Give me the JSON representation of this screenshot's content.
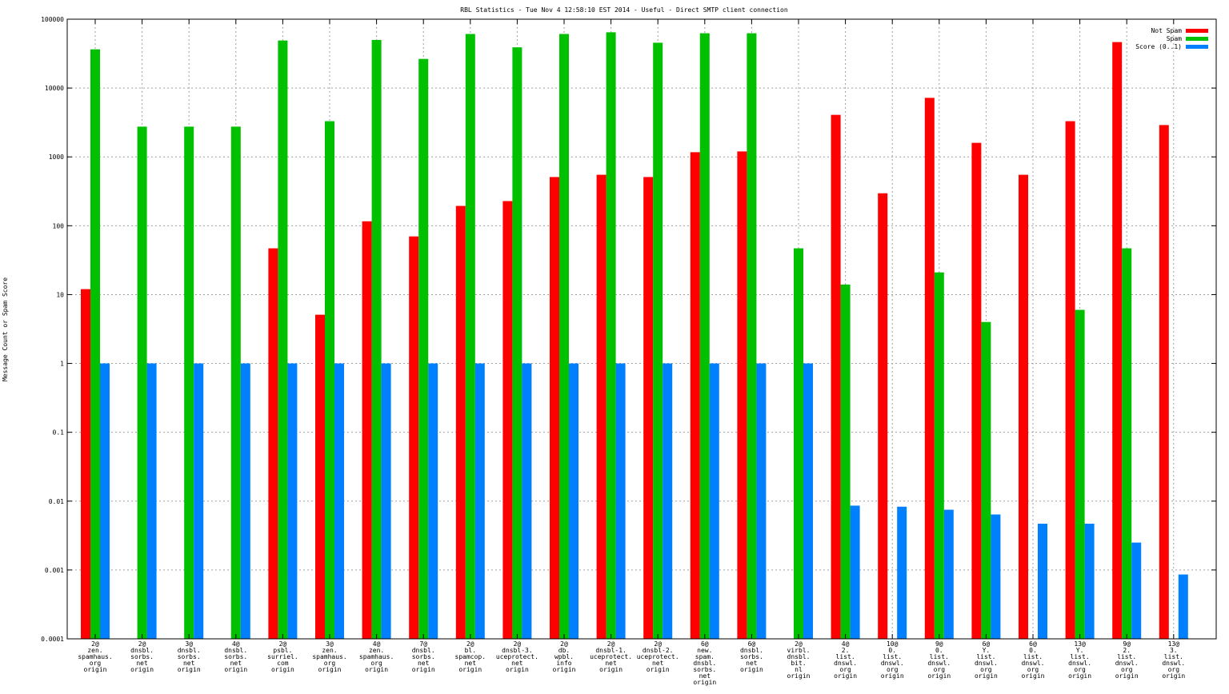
{
  "chart_data": {
    "type": "bar",
    "title": "RBL Statistics - Tue Nov  4 12:58:10 EST 2014 - Useful - Direct SMTP client connection",
    "xlabel": "",
    "ylabel": "Message Count or Spam Score",
    "yscale": "log",
    "ylim": [
      0.0001,
      100000
    ],
    "yticks": [
      "100000",
      "10000",
      "1000",
      "100",
      "10",
      "1",
      "0.1",
      "0.01",
      "0.001",
      "0.0001"
    ],
    "grid": true,
    "legend_position": "top-right",
    "categories": [
      [
        "2@",
        "zen.",
        "spamhaus.",
        "org",
        "origin"
      ],
      [
        "2@",
        "dnsbl.",
        "sorbs.",
        "net",
        "origin"
      ],
      [
        "3@",
        "dnsbl.",
        "sorbs.",
        "net",
        "origin"
      ],
      [
        "4@",
        "dnsbl.",
        "sorbs.",
        "net",
        "origin"
      ],
      [
        "2@",
        "psbl.",
        "surriel.",
        "com",
        "origin"
      ],
      [
        "3@",
        "zen.",
        "spamhaus.",
        "org",
        "origin"
      ],
      [
        "4@",
        "zen.",
        "spamhaus.",
        "org",
        "origin"
      ],
      [
        "7@",
        "dnsbl.",
        "sorbs.",
        "net",
        "origin"
      ],
      [
        "2@",
        "bl.",
        "spamcop.",
        "net",
        "origin"
      ],
      [
        "2@",
        "dnsbl-3.",
        "uceprotect.",
        "net",
        "origin"
      ],
      [
        "2@",
        "db.",
        "wpbl.",
        "info",
        "origin"
      ],
      [
        "2@",
        "dnsbl-1.",
        "uceprotect.",
        "net",
        "origin"
      ],
      [
        "2@",
        "dnsbl-2.",
        "uceprotect.",
        "net",
        "origin"
      ],
      [
        "6@",
        "new.",
        "spam.",
        "dnsbl.",
        "sorbs.",
        "net",
        "origin"
      ],
      [
        "6@",
        "dnsbl.",
        "sorbs.",
        "net",
        "origin"
      ],
      [
        "2@",
        "virbl.",
        "dnsbl.",
        "bit.",
        "nl",
        "origin"
      ],
      [
        "4@",
        "2.",
        "list.",
        "dnswl.",
        "org",
        "origin"
      ],
      [
        "10@",
        "0.",
        "list.",
        "dnswl.",
        "org",
        "origin"
      ],
      [
        "9@",
        "0.",
        "list.",
        "dnswl.",
        "org",
        "origin"
      ],
      [
        "6@",
        "Y.",
        "list.",
        "dnswl.",
        "org",
        "origin"
      ],
      [
        "6@",
        "0.",
        "list.",
        "dnswl.",
        "org",
        "origin"
      ],
      [
        "13@",
        "Y.",
        "list.",
        "dnswl.",
        "org",
        "origin"
      ],
      [
        "9@",
        "2.",
        "list.",
        "dnswl.",
        "org",
        "origin"
      ],
      [
        "13@",
        "3.",
        "list.",
        "dnswl.",
        "org",
        "origin"
      ]
    ],
    "series": [
      {
        "name": "Not Spam",
        "color": "#ff0000",
        "values": [
          12,
          null,
          null,
          null,
          47,
          5.1,
          116,
          70,
          194,
          228,
          510,
          550,
          510,
          1170,
          1200,
          null,
          4080,
          296,
          7200,
          1600,
          550,
          3300,
          46500,
          2900
        ]
      },
      {
        "name": "Spam",
        "color": "#00c000",
        "values": [
          36500,
          2750,
          2750,
          2750,
          49000,
          3300,
          50000,
          26500,
          61000,
          39000,
          61000,
          64500,
          45500,
          62500,
          62500,
          47,
          14,
          null,
          21,
          4,
          null,
          6,
          47,
          null
        ]
      },
      {
        "name": "Score (0..1)",
        "color": "#0080ff",
        "values": [
          1,
          1,
          1,
          1,
          1,
          1,
          1,
          1,
          1,
          1,
          1,
          1,
          1,
          1,
          1,
          1,
          0.0086,
          0.0083,
          0.0075,
          0.0064,
          0.0047,
          0.0047,
          0.0025,
          0.00086
        ]
      }
    ]
  }
}
